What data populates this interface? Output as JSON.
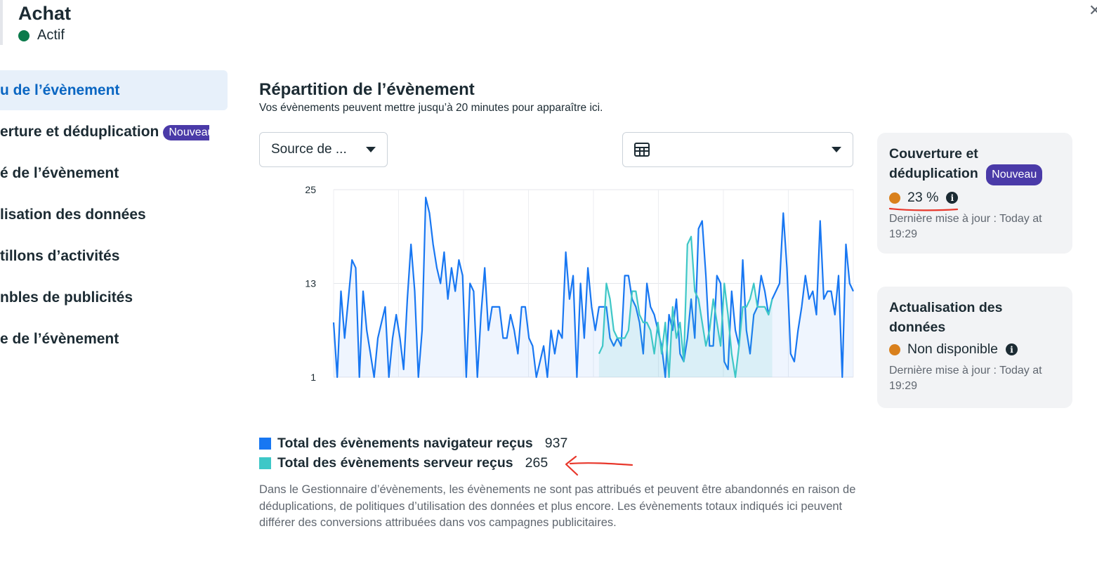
{
  "header": {
    "title": "Achat",
    "status": "Actif",
    "close_glyph": "✕"
  },
  "sidebar": {
    "items": [
      {
        "label": "u de l’évènement",
        "active": true
      },
      {
        "label": "erture et déduplication",
        "badge": "Nouveau"
      },
      {
        "label": "é de l’évènement"
      },
      {
        "label": "lisation des données"
      },
      {
        "label": "tillons d’activités"
      },
      {
        "label": "nbles de publicités"
      },
      {
        "label": "e de l’évènement"
      }
    ]
  },
  "main": {
    "title": "Répartition de l’évènement",
    "subtitle": "Vos évènements peuvent mettre jusqu’à 20 minutes pour apparaître ici.",
    "source_dropdown": "Source de ...",
    "view_dropdown_icon": "table-icon",
    "legend": [
      {
        "label": "Total des évènements navigateur reçus",
        "value": "937",
        "color": "#1877f2"
      },
      {
        "label": "Total des évènements serveur reçus",
        "value": "265",
        "color": "#3ec7c7"
      }
    ],
    "note": "Dans le Gestionnaire d’évènements, les évènements ne sont pas attribués et peuvent être abandonnés en raison de déduplications, de politiques d’utilisation des données et plus encore. Les évènements totaux indiqués ici peuvent différer des conversions attribuées dans vos campagnes publicitaires."
  },
  "cards": [
    {
      "title": "Couverture et déduplication",
      "badge": "Nouveau",
      "value": "23 %",
      "updated": "Dernière mise à jour : Today at 19:29"
    },
    {
      "title": "Actualisation des données",
      "value": "Non disponible",
      "updated": "Dernière mise à jour : Today at 19:29"
    }
  ],
  "colors": {
    "accent": "#0a66c2",
    "browser": "#1877f2",
    "server": "#3ec7c7",
    "badge": "#4a3aa8",
    "status_dot": "#0b7a4b",
    "warn": "#d9801c",
    "annotation": "#e8372b"
  },
  "chart_data": {
    "type": "line",
    "yticks": [
      "25",
      "13",
      "1"
    ],
    "ylim": [
      1,
      25
    ],
    "grid": true,
    "series": [
      {
        "name": "Total des évènements navigateur reçus",
        "values": [
          8,
          1,
          12,
          6,
          11,
          16,
          15,
          1,
          12,
          7,
          4,
          1,
          6,
          8,
          10,
          1,
          6,
          9,
          6,
          2,
          11,
          18,
          12,
          1,
          7,
          24,
          22,
          18,
          15,
          13,
          17,
          11,
          15,
          12,
          16,
          14,
          1,
          13,
          12,
          1,
          9,
          15,
          7,
          10,
          10,
          10,
          6,
          6,
          9,
          7,
          4,
          10,
          10,
          6,
          5,
          1,
          3,
          5,
          1,
          7,
          4,
          7,
          6,
          17,
          11,
          14,
          1,
          13,
          6,
          15,
          10,
          7,
          10,
          10,
          10,
          6,
          5,
          6,
          5,
          14,
          14,
          11,
          10,
          8,
          4,
          13,
          10,
          9,
          7,
          5,
          1,
          9,
          7,
          11,
          4,
          3,
          6,
          11,
          6,
          20,
          21,
          14,
          5,
          5,
          14,
          13,
          3,
          2,
          12,
          7,
          5,
          16,
          7,
          4,
          9,
          10,
          14,
          12,
          9,
          11,
          12,
          13,
          22,
          15,
          4,
          3,
          7,
          10,
          14,
          11,
          12,
          9,
          21,
          11,
          12,
          12,
          9,
          14,
          1,
          18,
          13,
          12
        ]
      },
      {
        "name": "Total des évènements serveur reçus",
        "values": [
          4,
          5,
          13,
          11,
          7,
          6,
          6,
          6,
          7,
          12,
          12,
          9,
          8,
          8,
          7,
          4,
          8,
          4,
          8,
          1,
          10,
          6,
          8,
          3,
          18,
          19,
          12,
          11,
          8,
          5,
          7,
          11,
          8,
          5,
          13,
          9,
          4,
          1,
          5,
          10,
          10,
          11,
          13,
          10,
          10,
          10,
          9,
          11
        ]
      }
    ]
  }
}
